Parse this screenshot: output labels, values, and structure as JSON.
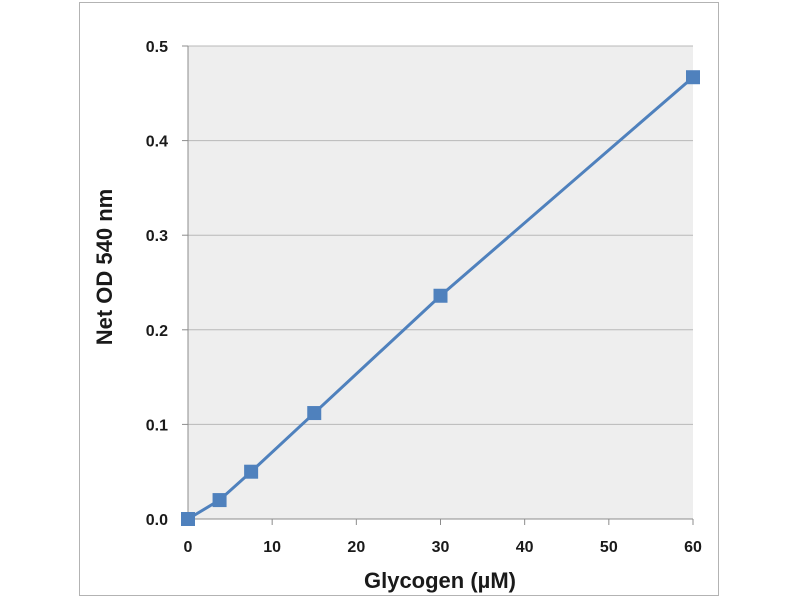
{
  "chart_data": {
    "type": "line",
    "title": "",
    "xlabel": "Glycogen (µM)",
    "ylabel": "Net OD 540 nm",
    "xlim": [
      0,
      60
    ],
    "ylim": [
      0,
      0.5
    ],
    "x_ticks": [
      "0",
      "10",
      "20",
      "30",
      "40",
      "50",
      "60"
    ],
    "y_ticks": [
      "0.0",
      "0.1",
      "0.2",
      "0.3",
      "0.4",
      "0.5"
    ],
    "grid": "horizontal",
    "legend": "none",
    "series": [
      {
        "x": [
          0,
          3.75,
          7.5,
          15,
          30,
          60
        ],
        "y": [
          0.0,
          0.02,
          0.05,
          0.112,
          0.236,
          0.467
        ],
        "marker": "square",
        "color": "#4f81bd"
      }
    ],
    "colors": {
      "plot_background": "#eeeeee",
      "gridline": "#b8b8b8",
      "axis": "#8c8c8c",
      "series": "#4f81bd"
    }
  }
}
